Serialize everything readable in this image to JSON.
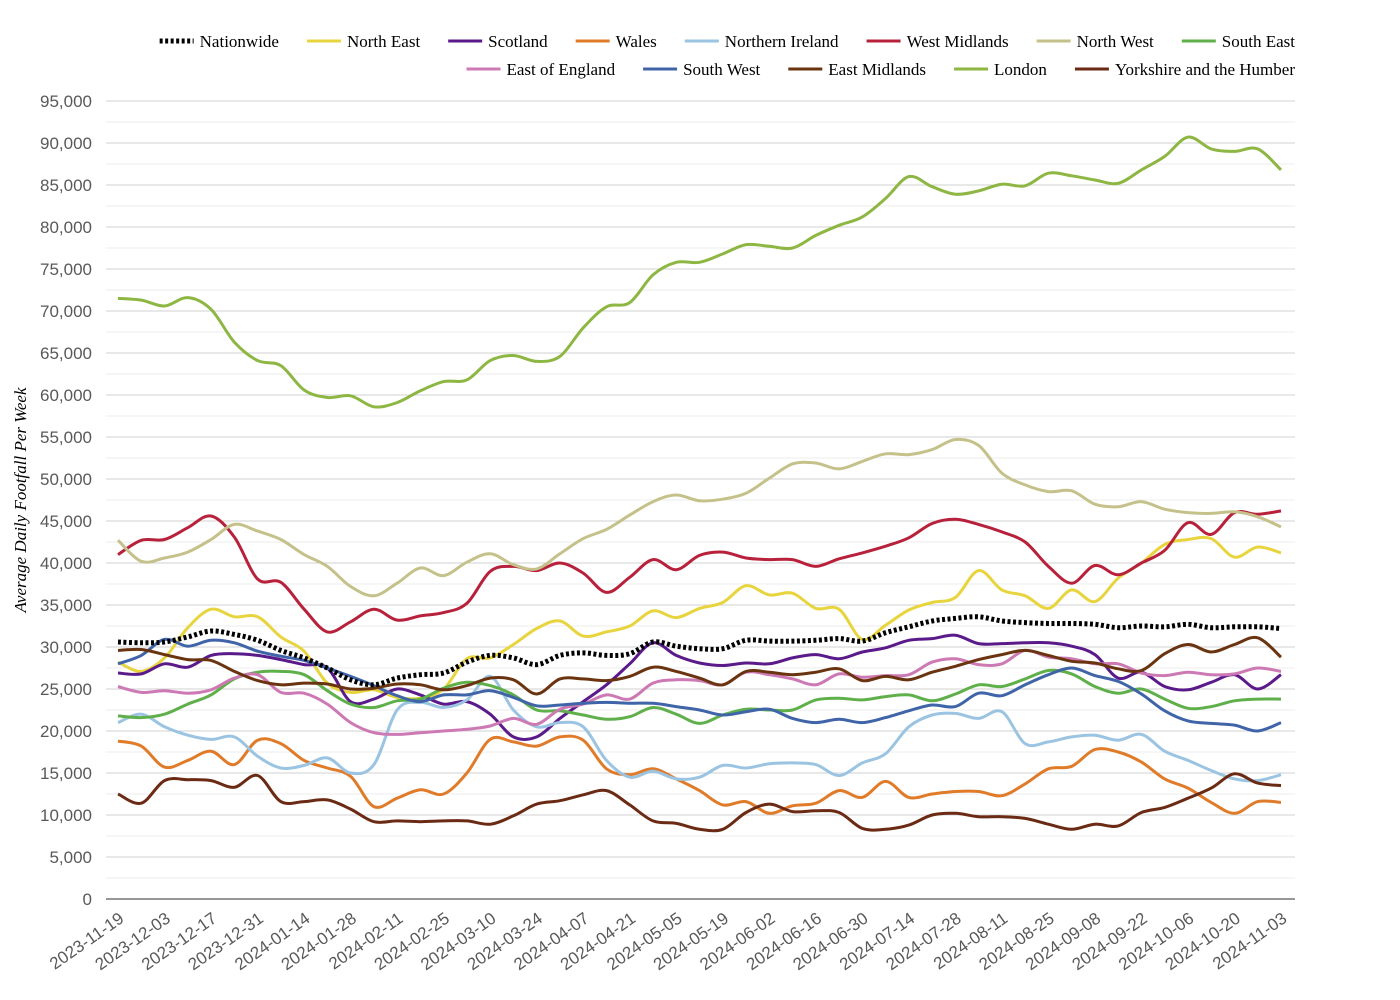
{
  "chart_data": {
    "type": "line",
    "title": "",
    "xlabel": "",
    "ylabel": "Average Daily Footfall Per Week",
    "ylim": [
      0,
      95000
    ],
    "y_ticks": [
      0,
      5000,
      10000,
      15000,
      20000,
      25000,
      30000,
      35000,
      40000,
      45000,
      50000,
      55000,
      60000,
      65000,
      70000,
      75000,
      80000,
      85000,
      90000,
      95000
    ],
    "y_tick_labels": [
      "0",
      "5,000",
      "10,000",
      "15,000",
      "20,000",
      "25,000",
      "30,000",
      "35,000",
      "40,000",
      "45,000",
      "50,000",
      "55,000",
      "60,000",
      "65,000",
      "70,000",
      "75,000",
      "80,000",
      "85,000",
      "90,000",
      "95,000"
    ],
    "x_tick_labels": [
      "2023-11-19",
      "2023-12-03",
      "2023-12-17",
      "2023-12-31",
      "2024-01-14",
      "2024-01-28",
      "2024-02-11",
      "2024-02-25",
      "2024-03-10",
      "2024-03-24",
      "2024-04-07",
      "2024-04-21",
      "2024-05-05",
      "2024-05-19",
      "2024-06-02",
      "2024-06-16",
      "2024-06-30",
      "2024-07-14",
      "2024-07-28",
      "2024-08-11",
      "2024-08-25",
      "2024-09-08",
      "2024-09-22",
      "2024-10-06",
      "2024-10-20",
      "2024-11-03"
    ],
    "grid": true,
    "legend_placement": "top-right",
    "x": [
      "2023-11-19",
      "2023-11-26",
      "2023-12-03",
      "2023-12-10",
      "2023-12-17",
      "2023-12-24",
      "2023-12-31",
      "2024-01-07",
      "2024-01-14",
      "2024-01-21",
      "2024-01-28",
      "2024-02-04",
      "2024-02-11",
      "2024-02-18",
      "2024-02-25",
      "2024-03-03",
      "2024-03-10",
      "2024-03-17",
      "2024-03-24",
      "2024-03-31",
      "2024-04-07",
      "2024-04-14",
      "2024-04-21",
      "2024-04-28",
      "2024-05-05",
      "2024-05-12",
      "2024-05-19",
      "2024-05-26",
      "2024-06-02",
      "2024-06-09",
      "2024-06-16",
      "2024-06-23",
      "2024-06-30",
      "2024-07-07",
      "2024-07-14",
      "2024-07-21",
      "2024-07-28",
      "2024-08-04",
      "2024-08-11",
      "2024-08-18",
      "2024-08-25",
      "2024-09-01",
      "2024-09-08",
      "2024-09-15",
      "2024-09-22",
      "2024-09-29",
      "2024-10-06",
      "2024-10-13",
      "2024-10-20",
      "2024-10-27",
      "2024-11-03"
    ],
    "series": [
      {
        "name": "Nationwide",
        "color": "#000000",
        "dashed": true,
        "values": [
          30600,
          30500,
          30600,
          31200,
          31900,
          31500,
          30800,
          29600,
          28700,
          27500,
          26100,
          25500,
          26300,
          26700,
          26900,
          28200,
          29000,
          28700,
          27900,
          29000,
          29300,
          29000,
          29200,
          30600,
          30100,
          29800,
          29800,
          30800,
          30700,
          30700,
          30800,
          31000,
          30700,
          31700,
          32400,
          33100,
          33400,
          33600,
          33100,
          32900,
          32800,
          32800,
          32700,
          32300,
          32500,
          32400,
          32700,
          32300,
          32400,
          32400,
          32200
        ]
      },
      {
        "name": "North East",
        "color": "#E8D43D",
        "values": [
          28200,
          27100,
          28700,
          32300,
          34500,
          33600,
          33600,
          31200,
          29500,
          25700,
          24600,
          24900,
          24000,
          23900,
          25000,
          28600,
          28700,
          30300,
          32200,
          33100,
          31300,
          31800,
          32500,
          34300,
          33500,
          34600,
          35300,
          37300,
          36200,
          36400,
          34600,
          34500,
          30900,
          32600,
          34400,
          35300,
          35900,
          39100,
          36800,
          36100,
          34600,
          36800,
          35400,
          38200,
          40000,
          42200,
          42800,
          42900,
          40700,
          41900,
          41200
        ]
      },
      {
        "name": "Scotland",
        "color": "#5B1A8A",
        "values": [
          26900,
          26800,
          28000,
          27600,
          29000,
          29200,
          29000,
          28500,
          27900,
          27500,
          23500,
          23800,
          25000,
          24300,
          23200,
          23500,
          22000,
          19300,
          19300,
          21500,
          23500,
          25500,
          28000,
          30500,
          29000,
          28100,
          27800,
          28100,
          28000,
          28700,
          29100,
          28600,
          29400,
          29900,
          30800,
          31000,
          31400,
          30400,
          30400,
          30500,
          30500,
          30100,
          29100,
          26300,
          27000,
          25300,
          24900,
          25800,
          26700,
          25000,
          26700
        ]
      },
      {
        "name": "Wales",
        "color": "#E07B2A",
        "values": [
          18800,
          18200,
          15700,
          16500,
          17600,
          16000,
          18900,
          18500,
          16500,
          15600,
          14600,
          11000,
          12000,
          13000,
          12500,
          15000,
          19000,
          18700,
          18200,
          19300,
          18900,
          15500,
          14800,
          15500,
          14300,
          12900,
          11200,
          11600,
          10200,
          11100,
          11400,
          12900,
          12100,
          14000,
          12100,
          12500,
          12800,
          12800,
          12300,
          13700,
          15500,
          15800,
          17800,
          17500,
          16300,
          14300,
          13200,
          11500,
          10200,
          11600,
          11500
        ]
      },
      {
        "name": "Northern Ireland",
        "color": "#9BC4E2",
        "values": [
          21000,
          22000,
          20500,
          19500,
          19000,
          19300,
          17000,
          15600,
          15900,
          16800,
          15000,
          16000,
          22500,
          23400,
          22800,
          23700,
          26500,
          22500,
          20500,
          21000,
          20500,
          16500,
          14500,
          15200,
          14300,
          14500,
          15900,
          15600,
          16100,
          16200,
          16000,
          14700,
          16200,
          17300,
          20500,
          21900,
          22100,
          21500,
          22300,
          18500,
          18700,
          19300,
          19500,
          18900,
          19600,
          17600,
          16500,
          15300,
          14300,
          14100,
          14800
        ]
      },
      {
        "name": "West Midlands",
        "color": "#B8213B",
        "values": [
          41000,
          42700,
          42800,
          44200,
          45600,
          43100,
          38100,
          37700,
          34500,
          31800,
          33000,
          34500,
          33200,
          33700,
          34100,
          35200,
          39000,
          39600,
          39100,
          40000,
          38800,
          36500,
          38300,
          40400,
          39200,
          40900,
          41300,
          40600,
          40400,
          40400,
          39600,
          40500,
          41200,
          42000,
          43000,
          44700,
          45200,
          44600,
          43700,
          42500,
          39600,
          37600,
          39700,
          38600,
          40000,
          41500,
          44800,
          43400,
          46000,
          45800,
          46200
        ]
      },
      {
        "name": "North West",
        "color": "#C5C18A",
        "values": [
          42700,
          40200,
          40600,
          41300,
          42800,
          44600,
          43800,
          42800,
          41000,
          39600,
          37200,
          36100,
          37600,
          39400,
          38500,
          40100,
          41100,
          39800,
          39300,
          41100,
          42900,
          44000,
          45700,
          47300,
          48100,
          47400,
          47600,
          48300,
          50100,
          51800,
          51900,
          51200,
          52100,
          53000,
          52900,
          53500,
          54700,
          54000,
          50700,
          49300,
          48500,
          48600,
          47000,
          46700,
          47300,
          46400,
          46000,
          45900,
          46100,
          45500,
          44300
        ]
      },
      {
        "name": "South East",
        "color": "#5FAF4A",
        "values": [
          21800,
          21600,
          22000,
          23200,
          24300,
          26200,
          27000,
          27100,
          26700,
          24800,
          23200,
          22800,
          23600,
          23800,
          25100,
          25800,
          25400,
          24300,
          22500,
          22400,
          21900,
          21400,
          21700,
          22800,
          22000,
          20900,
          21900,
          22600,
          22500,
          22500,
          23700,
          23900,
          23700,
          24100,
          24300,
          23600,
          24400,
          25500,
          25300,
          26200,
          27200,
          26800,
          25300,
          24500,
          25000,
          23800,
          22700,
          22900,
          23600,
          23800,
          23800
        ]
      },
      {
        "name": "East of England",
        "color": "#CC79B4",
        "values": [
          25300,
          24600,
          24800,
          24500,
          24900,
          26300,
          26700,
          24600,
          24500,
          23200,
          21000,
          19800,
          19600,
          19800,
          20000,
          20200,
          20600,
          21500,
          20800,
          22600,
          23200,
          24300,
          23800,
          25700,
          26100,
          26000,
          25500,
          27000,
          26700,
          26200,
          25500,
          26800,
          26400,
          26600,
          26700,
          28200,
          28600,
          27900,
          28000,
          29600,
          28800,
          28600,
          28000,
          28000,
          26900,
          26600,
          27000,
          26700,
          26800,
          27500,
          27100
        ]
      },
      {
        "name": "South West",
        "color": "#3F64A8",
        "values": [
          28000,
          29000,
          30900,
          30100,
          30800,
          30500,
          29500,
          28900,
          28400,
          27500,
          26500,
          25400,
          24200,
          23500,
          24300,
          24300,
          24800,
          24000,
          23000,
          23100,
          23300,
          23400,
          23300,
          23300,
          22900,
          22500,
          21900,
          22300,
          22600,
          21500,
          21000,
          21400,
          21000,
          21600,
          22400,
          23100,
          22900,
          24500,
          24200,
          25500,
          26700,
          27500,
          26600,
          25900,
          24400,
          22400,
          21200,
          20900,
          20700,
          20000,
          21000
        ]
      },
      {
        "name": "East Midlands",
        "color": "#6B3410",
        "values": [
          29600,
          29700,
          29100,
          28500,
          28400,
          27100,
          26000,
          25500,
          25700,
          25600,
          25000,
          25100,
          25600,
          25500,
          24900,
          25400,
          26300,
          26100,
          24400,
          26200,
          26200,
          26000,
          26500,
          27600,
          27100,
          26300,
          25500,
          27100,
          27000,
          26700,
          27000,
          27400,
          26000,
          26500,
          26100,
          27000,
          27700,
          28500,
          29100,
          29600,
          29000,
          28300,
          28100,
          27400,
          27200,
          29200,
          30300,
          29400,
          30300,
          31100,
          28800
        ]
      },
      {
        "name": "London",
        "color": "#8DB642",
        "values": [
          71500,
          71300,
          70600,
          71600,
          70200,
          66300,
          64100,
          63500,
          60600,
          59700,
          59900,
          58600,
          59100,
          60500,
          61600,
          61800,
          64100,
          64700,
          64000,
          64600,
          68000,
          70500,
          71000,
          74300,
          75800,
          75800,
          76800,
          77900,
          77700,
          77500,
          79000,
          80200,
          81200,
          83400,
          86000,
          84800,
          83900,
          84300,
          85100,
          84900,
          86400,
          86100,
          85600,
          85200,
          86800,
          88400,
          90700,
          89300,
          89000,
          89300,
          86800
        ]
      },
      {
        "name": "Yorkshire and the Humber",
        "color": "#6B2A14",
        "values": [
          12500,
          11400,
          14100,
          14200,
          14100,
          13300,
          14700,
          11600,
          11600,
          11800,
          10700,
          9200,
          9300,
          9200,
          9300,
          9300,
          8900,
          9900,
          11300,
          11700,
          12400,
          12900,
          11200,
          9300,
          9000,
          8300,
          8300,
          10300,
          11300,
          10400,
          10500,
          10300,
          8400,
          8300,
          8800,
          10000,
          10200,
          9800,
          9800,
          9600,
          8900,
          8300,
          8900,
          8700,
          10300,
          10900,
          12000,
          13200,
          14900,
          13800,
          13500
        ]
      }
    ]
  }
}
